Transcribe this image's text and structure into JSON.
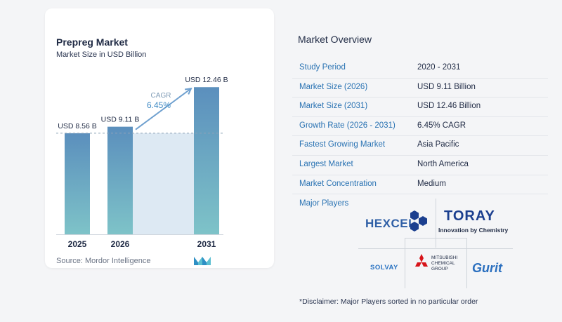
{
  "chart_data": {
    "type": "bar",
    "title": "Prepreg Market",
    "subtitle": "Market Size in USD Billion",
    "categories": [
      "2025",
      "2026",
      "2031"
    ],
    "values": [
      8.56,
      9.11,
      12.46
    ],
    "value_labels": [
      "USD 8.56 B",
      "USD 9.11 B",
      "USD 12.46 B"
    ],
    "ylim": [
      0,
      13.9
    ],
    "xlabel": "",
    "ylabel": "",
    "grid": false,
    "annotation": {
      "label": "CAGR",
      "value": "6.45%"
    },
    "colors": {
      "bar_top": "#5b8fbd",
      "bar_bottom": "#7ec3c8",
      "band": "#dde9f3",
      "arrow": "#6fa0cf"
    }
  },
  "source": "Source:  Mordor Intelligence",
  "overview": {
    "title": "Market Overview",
    "rows": [
      {
        "label": "Study Period",
        "value": "2020 - 2031"
      },
      {
        "label": "Market Size (2026)",
        "value": "USD 9.11 Billion"
      },
      {
        "label": "Market Size (2031)",
        "value": "USD 12.46 Billion"
      },
      {
        "label": "Growth Rate (2026 - 2031)",
        "value": "6.45% CAGR"
      },
      {
        "label": "Fastest Growing Market",
        "value": "Asia Pacific"
      },
      {
        "label": "Largest Market",
        "value": "North America"
      },
      {
        "label": "Market Concentration",
        "value": "Medium"
      }
    ],
    "players_label": "Major Players"
  },
  "players": {
    "hexcel": "HEXCEL",
    "toray": "TORAY",
    "toray_tagline": "Innovation by Chemistry",
    "solvay": "SOLVAY",
    "mcg": [
      "MITSUBISHI",
      "CHEMICAL",
      "GROUP"
    ],
    "gurit": "Gurit"
  },
  "disclaimer": "*Disclaimer: Major Players sorted in no particular order"
}
